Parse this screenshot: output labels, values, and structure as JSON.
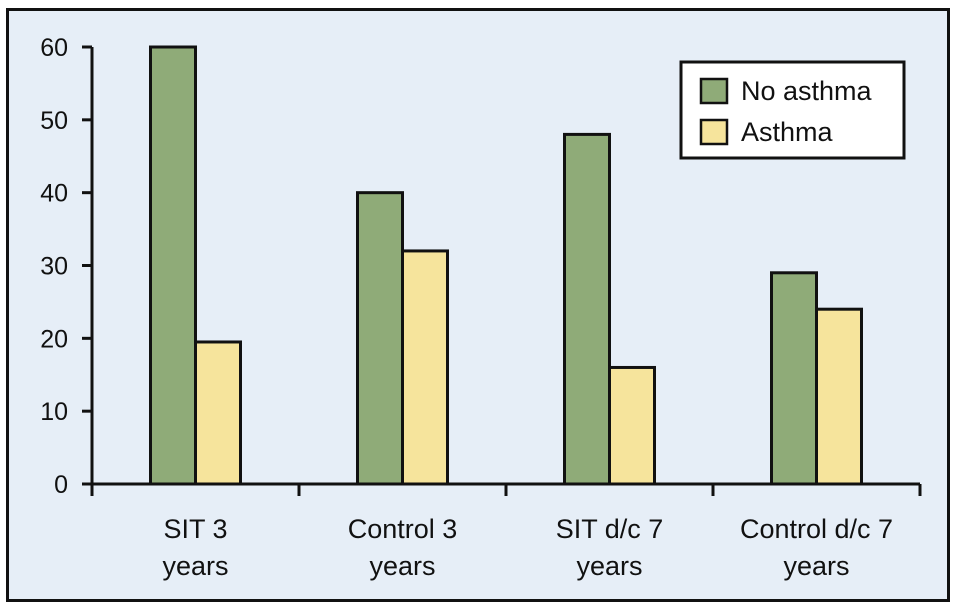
{
  "chart_data": {
    "type": "bar",
    "title": "",
    "xlabel": "",
    "ylabel": "",
    "ylim": [
      0,
      60
    ],
    "yticks": [
      0,
      10,
      20,
      30,
      40,
      50,
      60
    ],
    "grid": false,
    "legend_position": "top-right",
    "categories": [
      [
        "SIT 3",
        "years"
      ],
      [
        "Control 3",
        "years"
      ],
      [
        "SIT d/c 7",
        "years"
      ],
      [
        "Control d/c 7",
        "years"
      ]
    ],
    "series": [
      {
        "name": "No asthma",
        "color": "#8fab78",
        "values": [
          60,
          40,
          48,
          29
        ]
      },
      {
        "name": "Asthma",
        "color": "#f6e49c",
        "values": [
          19.5,
          32,
          16,
          24
        ]
      }
    ]
  },
  "colors": {
    "background": "#e6eef7",
    "frame": "#111111"
  }
}
